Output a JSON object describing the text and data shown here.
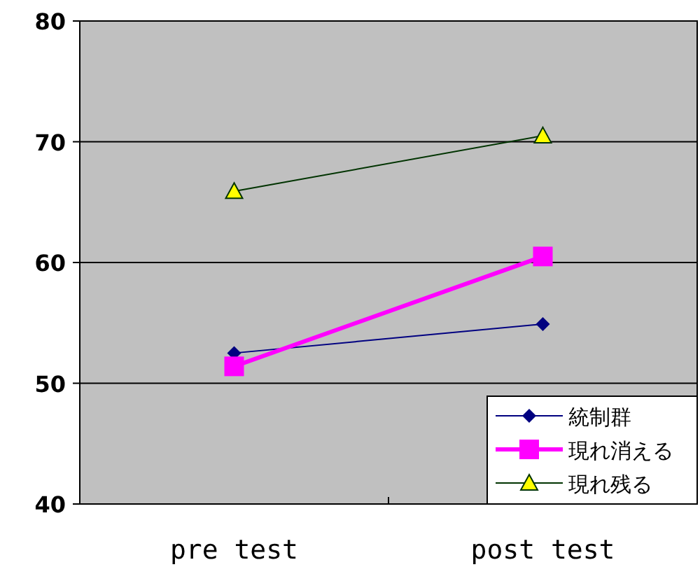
{
  "chart_data": {
    "type": "line",
    "categories": [
      "pre test",
      "post test"
    ],
    "series": [
      {
        "name": "統制群",
        "color": "#000080",
        "values": [
          52.5,
          54.9
        ],
        "marker": "diamond"
      },
      {
        "name": "現れ消える",
        "color": "#ff00ff",
        "values": [
          51.4,
          60.5
        ],
        "marker": "square"
      },
      {
        "name": "現れ残る",
        "color": "#003300",
        "values": [
          65.9,
          70.5
        ],
        "marker": "triangle"
      }
    ],
    "ylim": [
      40,
      80
    ],
    "yticks": [
      40,
      50,
      60,
      70,
      80
    ],
    "grid": "y",
    "legend": "bottom right"
  }
}
